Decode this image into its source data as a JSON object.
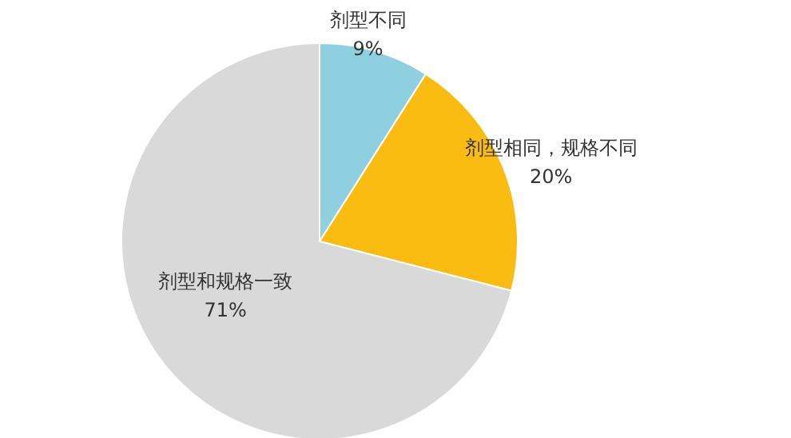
{
  "chart_data": {
    "type": "pie",
    "categories": [
      "剂型不同",
      "剂型相同，规格不同",
      "剂型和规格一致"
    ],
    "values": [
      9,
      20,
      71
    ],
    "value_labels": [
      "9%",
      "20%",
      "71%"
    ],
    "colors": [
      "#8ecfe0",
      "#fbbc12",
      "#d9d9d9"
    ],
    "legend": false
  }
}
